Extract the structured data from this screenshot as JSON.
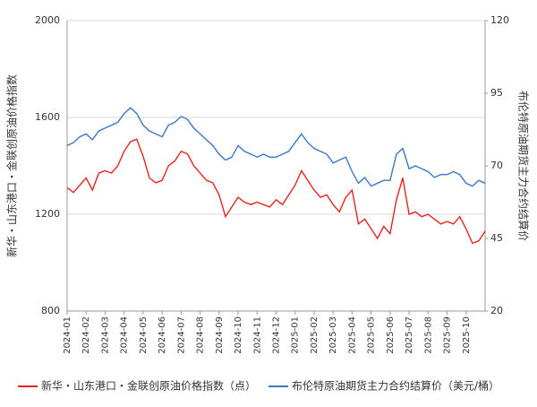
{
  "chart_data": {
    "type": "line",
    "y_label": "新华・山东港口・金联创原油价格指数",
    "y2_label": "布伦特原油期货主力合约结算价",
    "categories": [
      "2024-01",
      null,
      null,
      "2024-02",
      null,
      null,
      "2024-03",
      null,
      null,
      "2024-04",
      null,
      null,
      "2024-05",
      null,
      null,
      "2024-06",
      null,
      null,
      "2024-07",
      null,
      null,
      "2024-08",
      null,
      null,
      "2024-09",
      null,
      null,
      "2024-10",
      null,
      null,
      "2024-11",
      null,
      null,
      "2024-12",
      null,
      null,
      "2025-01",
      null,
      null,
      "2025-02",
      null,
      null,
      "2025-03",
      null,
      null,
      "2025-04",
      null,
      null,
      "2025-05",
      null,
      null,
      "2025-06",
      null,
      null,
      "2025-07",
      null,
      null,
      "2025-08",
      null,
      null,
      "2025-09",
      null,
      null,
      "2025-10",
      null,
      null,
      null
    ],
    "ylim": [
      800,
      2000
    ],
    "yticks": [
      800,
      1200,
      1600,
      2000
    ],
    "y2lim": [
      20,
      120
    ],
    "y2ticks": [
      20,
      45,
      70,
      95,
      120
    ],
    "grid": true,
    "legend": "bottom",
    "series": [
      {
        "name": "新华・山东港口・金联创原油价格指数（点）",
        "color": "#e8231e",
        "values": [
          1310,
          1290,
          1320,
          1350,
          1300,
          1370,
          1380,
          1370,
          1400,
          1460,
          1500,
          1510,
          1440,
          1350,
          1330,
          1340,
          1400,
          1420,
          1460,
          1450,
          1400,
          1370,
          1340,
          1330,
          1280,
          1190,
          1230,
          1270,
          1250,
          1240,
          1250,
          1240,
          1230,
          1260,
          1240,
          1280,
          1320,
          1380,
          1340,
          1300,
          1270,
          1280,
          1240,
          1210,
          1270,
          1300,
          1160,
          1180,
          1140,
          1100,
          1150,
          1120,
          1260,
          1350,
          1200,
          1210,
          1190,
          1200,
          1180,
          1160,
          1170,
          1160,
          1190,
          1140,
          1080,
          1090,
          1130
        ]
      },
      {
        "name": "布伦特原油期货主力合约结算价（美元/桶）",
        "color": "#3a78c9",
        "axis": "y2",
        "values": [
          77,
          78,
          80,
          81,
          79,
          82,
          83,
          84,
          85,
          88,
          90,
          88,
          84,
          82,
          81,
          80,
          84,
          85,
          87,
          86,
          83,
          81,
          79,
          77,
          74,
          72,
          73,
          77,
          75,
          74,
          73,
          74,
          73,
          73,
          74,
          75,
          78,
          81,
          78,
          76,
          75,
          74,
          71,
          72,
          73,
          68,
          64,
          66,
          63,
          64,
          65,
          65,
          74,
          76,
          69,
          70,
          69,
          68,
          66,
          67,
          67,
          68,
          67,
          64,
          63,
          65,
          64
        ]
      }
    ]
  }
}
